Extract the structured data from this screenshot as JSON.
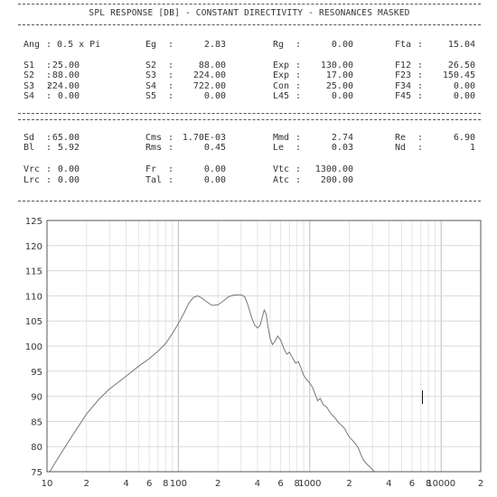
{
  "header": {
    "title": "SPL RESPONSE [DB] - CONSTANT DIRECTIVITY - RESONANCES MASKED"
  },
  "params_block1": [
    [
      [
        "Ang",
        ": 0.5 x Pi",
        ""
      ],
      [
        "Eg",
        ":",
        "2.83"
      ],
      [
        "Rg",
        ":",
        "0.00"
      ],
      [
        "Fta",
        ":",
        "15.04"
      ]
    ],
    [
      [
        "S1",
        ":",
        "25.00"
      ],
      [
        "S2",
        ":",
        "88.00"
      ],
      [
        "Exp",
        ":",
        "130.00"
      ],
      [
        "F12",
        ":",
        "26.50"
      ]
    ],
    [
      [
        "S2",
        ":",
        "88.00"
      ],
      [
        "S3",
        ":",
        "224.00"
      ],
      [
        "Exp",
        ":",
        "17.00"
      ],
      [
        "F23",
        ":",
        "150.45"
      ]
    ],
    [
      [
        "S3",
        ":",
        "224.00"
      ],
      [
        "S4",
        ":",
        "722.00"
      ],
      [
        "Con",
        ":",
        "25.00"
      ],
      [
        "F34",
        ":",
        "0.00"
      ]
    ],
    [
      [
        "S4",
        ":",
        "0.00"
      ],
      [
        "S5",
        ":",
        "0.00"
      ],
      [
        "L45",
        ":",
        "0.00"
      ],
      [
        "F45",
        ":",
        "0.00"
      ]
    ]
  ],
  "params_block2": [
    [
      [
        "Sd",
        ":",
        "65.00"
      ],
      [
        "Cms",
        ":",
        "1.70E-03"
      ],
      [
        "Mmd",
        ":",
        "2.74"
      ],
      [
        "Re",
        ":",
        "6.90"
      ]
    ],
    [
      [
        "Bl",
        ":",
        "5.92"
      ],
      [
        "Rms",
        ":",
        "0.45"
      ],
      [
        "Le",
        ":",
        "0.03"
      ],
      [
        "Nd",
        ":",
        "1"
      ]
    ],
    [
      [
        "Vrc",
        ":",
        "0.00"
      ],
      [
        "Fr",
        ":",
        "0.00"
      ],
      [
        "Vtc",
        ":",
        "1300.00"
      ],
      [
        "",
        "",
        ""
      ]
    ],
    [
      [
        "Lrc",
        ":",
        "0.00"
      ],
      [
        "Tal",
        ":",
        "0.00"
      ],
      [
        "Atc",
        ":",
        "200.00"
      ],
      [
        "",
        "",
        ""
      ]
    ]
  ],
  "chart_data": {
    "type": "line",
    "title": "",
    "xlabel": "",
    "ylabel": "",
    "x_scale": "log",
    "xlim": [
      10,
      20000
    ],
    "ylim": [
      75,
      125
    ],
    "y_ticks": [
      "125",
      "120",
      "115",
      "110",
      "105",
      "100",
      "95",
      "90",
      "85",
      "80",
      "75"
    ],
    "x_tick_labels": [
      {
        "x": 10,
        "label": "10"
      },
      {
        "x": 20,
        "label": "2"
      },
      {
        "x": 40,
        "label": "4"
      },
      {
        "x": 60,
        "label": "6"
      },
      {
        "x": 80,
        "label": "8"
      },
      {
        "x": 100,
        "label": "100"
      },
      {
        "x": 200,
        "label": "2"
      },
      {
        "x": 400,
        "label": "4"
      },
      {
        "x": 600,
        "label": "6"
      },
      {
        "x": 800,
        "label": "8"
      },
      {
        "x": 1000,
        "label": "1000"
      },
      {
        "x": 2000,
        "label": "2"
      },
      {
        "x": 4000,
        "label": "4"
      },
      {
        "x": 6000,
        "label": "6"
      },
      {
        "x": 8000,
        "label": "8"
      },
      {
        "x": 10000,
        "label": "10000"
      },
      {
        "x": 20000,
        "label": "2"
      }
    ],
    "grid": true,
    "series": [
      {
        "values": [
          [
            10.5,
            75.0
          ],
          [
            12,
            77.5
          ],
          [
            15,
            81.5
          ],
          [
            20,
            86.5
          ],
          [
            25,
            89.5
          ],
          [
            30,
            91.5
          ],
          [
            40,
            94.0
          ],
          [
            50,
            96.0
          ],
          [
            60,
            97.5
          ],
          [
            70,
            99.0
          ],
          [
            80,
            100.5
          ],
          [
            90,
            102.5
          ],
          [
            100,
            104.5
          ],
          [
            110,
            106.5
          ],
          [
            120,
            108.5
          ],
          [
            130,
            109.7
          ],
          [
            140,
            110.0
          ],
          [
            150,
            109.6
          ],
          [
            165,
            108.8
          ],
          [
            180,
            108.1
          ],
          [
            200,
            108.2
          ],
          [
            220,
            109.0
          ],
          [
            240,
            109.8
          ],
          [
            260,
            110.1
          ],
          [
            280,
            110.2
          ],
          [
            300,
            110.2
          ],
          [
            320,
            109.8
          ],
          [
            340,
            108.0
          ],
          [
            360,
            105.8
          ],
          [
            380,
            104.2
          ],
          [
            400,
            103.6
          ],
          [
            420,
            104.2
          ],
          [
            435,
            105.8
          ],
          [
            450,
            107.2
          ],
          [
            465,
            106.4
          ],
          [
            480,
            104.0
          ],
          [
            500,
            101.5
          ],
          [
            520,
            100.3
          ],
          [
            545,
            101.0
          ],
          [
            570,
            102.0
          ],
          [
            600,
            101.2
          ],
          [
            640,
            99.3
          ],
          [
            670,
            98.4
          ],
          [
            700,
            98.8
          ],
          [
            740,
            97.6
          ],
          [
            780,
            96.6
          ],
          [
            820,
            96.9
          ],
          [
            860,
            95.5
          ],
          [
            900,
            94.1
          ],
          [
            950,
            93.3
          ],
          [
            1000,
            92.6
          ],
          [
            1050,
            91.8
          ],
          [
            1100,
            90.4
          ],
          [
            1150,
            89.1
          ],
          [
            1200,
            89.6
          ],
          [
            1260,
            88.4
          ],
          [
            1350,
            87.8
          ],
          [
            1450,
            86.5
          ],
          [
            1550,
            85.8
          ],
          [
            1650,
            84.8
          ],
          [
            1750,
            84.2
          ],
          [
            1850,
            83.5
          ],
          [
            1950,
            82.3
          ],
          [
            2050,
            81.6
          ],
          [
            2150,
            81.0
          ],
          [
            2250,
            80.4
          ],
          [
            2350,
            79.6
          ],
          [
            2450,
            78.4
          ],
          [
            2550,
            77.4
          ],
          [
            2700,
            76.6
          ],
          [
            2850,
            76.0
          ],
          [
            3000,
            75.4
          ],
          [
            3100,
            75.0
          ]
        ]
      }
    ]
  }
}
